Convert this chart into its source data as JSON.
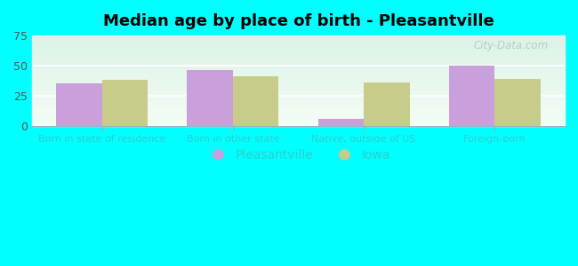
{
  "title": "Median age by place of birth - Pleasantville",
  "categories": [
    "Born in state of residence",
    "Born in other state",
    "Native, outside of US",
    "Foreign-born"
  ],
  "pleasantville_values": [
    35,
    46,
    6,
    50
  ],
  "iowa_values": [
    38,
    41,
    36,
    39
  ],
  "bar_color_pleasantville": "#c9a0dc",
  "bar_color_iowa": "#c8cc8a",
  "ylim": [
    0,
    75
  ],
  "yticks": [
    0,
    25,
    50,
    75
  ],
  "legend_labels": [
    "Pleasantville",
    "Iowa"
  ],
  "outer_bg": "#00ffff",
  "plot_bg_top": "#e8f8f0",
  "plot_bg_bottom": "#f5fff8",
  "watermark": "City-Data.com",
  "bar_width": 0.35,
  "tick_label_color": "#33cccc",
  "ytick_label_color": "#555555"
}
